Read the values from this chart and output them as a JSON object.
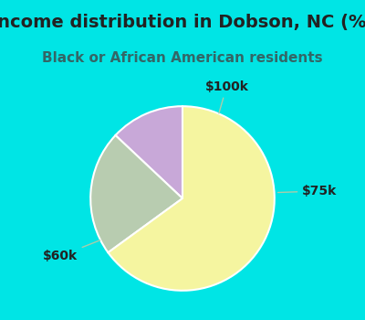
{
  "title": "Income distribution in Dobson, NC (%)",
  "subtitle": "Black or African American residents",
  "slices": [
    {
      "label": "$100k",
      "value": 13,
      "color": "#c8a8d8"
    },
    {
      "label": "$75k",
      "value": 22,
      "color": "#b8ccb0"
    },
    {
      "label": "$60k",
      "value": 65,
      "color": "#f5f5a0"
    }
  ],
  "background_top": "#00e5e5",
  "background_chart": "#d0f0e8",
  "title_color": "#222222",
  "subtitle_color": "#336666",
  "label_color": "#222222",
  "label_line_color": "#aaccaa",
  "title_fontsize": 14,
  "subtitle_fontsize": 11,
  "label_fontsize": 10,
  "startangle": 90,
  "fig_width": 4.0,
  "fig_height": 3.5,
  "dpi": 100
}
